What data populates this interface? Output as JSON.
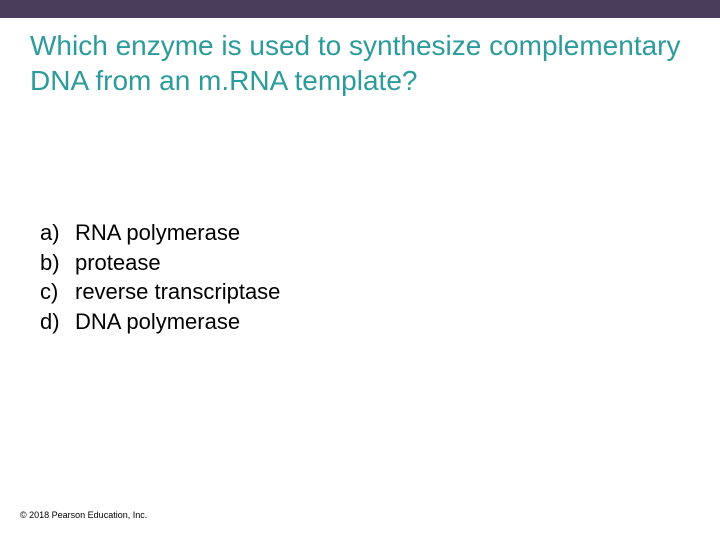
{
  "colors": {
    "top_bar": "#4a3d5c",
    "title": "#2d9b9b",
    "option_text": "#000000",
    "copyright": "#000000",
    "background": "#ffffff"
  },
  "title": "Which enzyme is used to synthesize complementary DNA from an m.RNA template?",
  "options": [
    {
      "letter": "a)",
      "text": "RNA polymerase"
    },
    {
      "letter": "b)",
      "text": "protease"
    },
    {
      "letter": "c)",
      "text": "reverse transcriptase"
    },
    {
      "letter": "d)",
      "text": "DNA polymerase"
    }
  ],
  "copyright": "© 2018 Pearson Education, Inc."
}
